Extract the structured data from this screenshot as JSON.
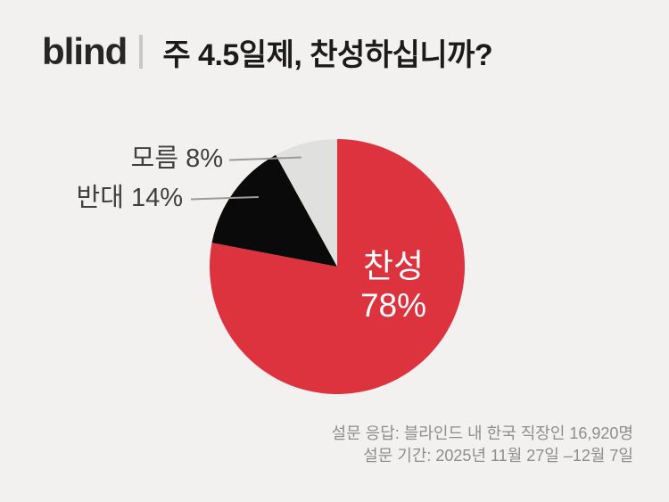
{
  "header": {
    "logo": "blind",
    "title": "주 4.5일제, 찬성하십니까?"
  },
  "chart_data": {
    "type": "pie",
    "title": "주 4.5일제, 찬성하십니까?",
    "start_angle_deg": 0,
    "direction": "clockwise",
    "legend_position": "none",
    "slices": [
      {
        "id": "agree",
        "label": "찬성",
        "value": 78,
        "color": "#DC333E",
        "label_placement": "inside",
        "label_color": "#FFFFFF"
      },
      {
        "id": "disagree",
        "label": "반대",
        "value": 14,
        "color": "#0A0A0A",
        "label_placement": "outside",
        "label_color": "#3F3F3F"
      },
      {
        "id": "unknown",
        "label": "모름",
        "value": 8,
        "color": "#E0E0DE",
        "label_placement": "outside",
        "label_color": "#3F3F3F"
      }
    ]
  },
  "callouts": {
    "unknown": "모름 8%",
    "disagree": "반대 14%",
    "agree_name": "찬성",
    "agree_value": "78%"
  },
  "footer": {
    "line1": "설문 응답: 블라인드 내 한국 직장인 16,920명",
    "line2": "설문 기간: 2025년 11월 27일 –12월 7일"
  },
  "colors": {
    "background": "#F2F1EF",
    "brand_red": "#DC333E",
    "slice_black": "#0A0A0A",
    "slice_gray": "#E0E0DE",
    "title_text": "#1B1B1B",
    "callout_text": "#3F3F3F",
    "leader_line": "#9A9A9A",
    "footer_text": "#8E8D8B",
    "divider": "#C9C8C6"
  }
}
